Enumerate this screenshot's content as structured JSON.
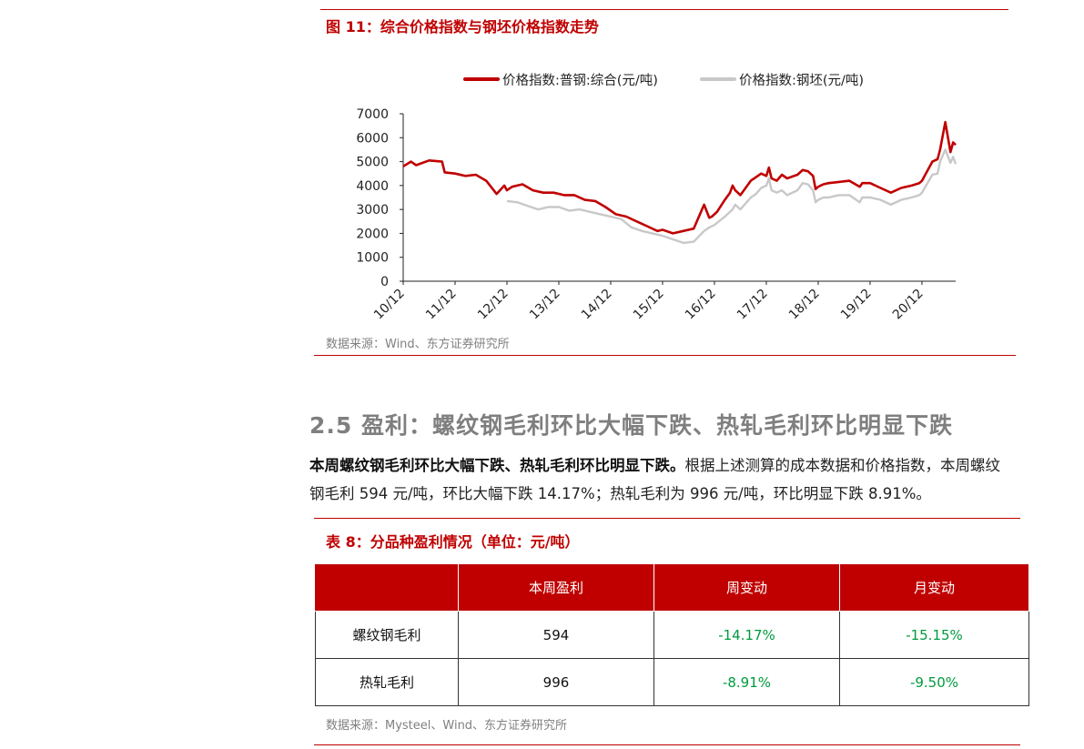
{
  "figure": {
    "title": "图 11：综合价格指数与钢坯价格指数走势",
    "source": "数据来源：Wind、东方证券研究所",
    "legend": [
      {
        "label": "价格指数:普钢:综合(元/吨)",
        "color": "#c00000"
      },
      {
        "label": "价格指数:钢坯(元/吨)",
        "color": "#c8c8c8"
      }
    ]
  },
  "chart_data": {
    "type": "line",
    "ylim": [
      0,
      7000
    ],
    "yticks": [
      "0",
      "1000",
      "2000",
      "3000",
      "4000",
      "5000",
      "6000",
      "7000"
    ],
    "xticks": [
      "10/12",
      "11/12",
      "12/12",
      "13/12",
      "14/12",
      "15/12",
      "16/12",
      "17/12",
      "18/12",
      "19/12",
      "20/12"
    ],
    "xlim": [
      2010.0,
      2020.65
    ],
    "series": [
      {
        "name": "价格指数:普钢:综合(元/吨)",
        "color": "#c00000",
        "x": [
          2010.0,
          2010.15,
          2010.25,
          2010.5,
          2010.75,
          2010.8,
          2011.0,
          2011.2,
          2011.4,
          2011.6,
          2011.8,
          2011.95,
          2012.0,
          2012.1,
          2012.3,
          2012.5,
          2012.7,
          2012.9,
          2013.1,
          2013.3,
          2013.5,
          2013.7,
          2013.9,
          2014.1,
          2014.3,
          2014.5,
          2014.7,
          2014.9,
          2015.0,
          2015.2,
          2015.4,
          2015.6,
          2015.8,
          2015.9,
          2015.95,
          2016.05,
          2016.2,
          2016.3,
          2016.35,
          2016.4,
          2016.5,
          2016.7,
          2016.8,
          2016.9,
          2017.0,
          2017.05,
          2017.1,
          2017.2,
          2017.3,
          2017.4,
          2017.6,
          2017.7,
          2017.8,
          2017.9,
          2017.95,
          2018.0,
          2018.1,
          2018.2,
          2018.4,
          2018.6,
          2018.8,
          2018.85,
          2019.0,
          2019.2,
          2019.4,
          2019.6,
          2019.8,
          2019.95,
          2020.0,
          2020.2,
          2020.3,
          2020.35,
          2020.45,
          2020.55,
          2020.6,
          2020.65
        ],
        "y": [
          4800,
          5000,
          4850,
          5050,
          5000,
          4550,
          4500,
          4400,
          4450,
          4200,
          3650,
          4000,
          3800,
          3950,
          4050,
          3800,
          3700,
          3700,
          3600,
          3600,
          3400,
          3350,
          3100,
          2800,
          2700,
          2500,
          2300,
          2100,
          2150,
          2000,
          2100,
          2200,
          3200,
          2650,
          2700,
          2900,
          3400,
          3700,
          4000,
          3800,
          3600,
          4200,
          4350,
          4500,
          4400,
          4750,
          4300,
          4200,
          4450,
          4300,
          4450,
          4650,
          4600,
          4400,
          3850,
          3950,
          4050,
          4100,
          4150,
          4200,
          3950,
          4100,
          4100,
          3900,
          3700,
          3900,
          4000,
          4100,
          4200,
          5000,
          5100,
          5500,
          6650,
          5400,
          5800,
          5700
        ]
      },
      {
        "name": "价格指数:钢坯(元/吨)",
        "color": "#c8c8c8",
        "x": [
          2012.0,
          2012.2,
          2012.4,
          2012.6,
          2012.8,
          2013.0,
          2013.2,
          2013.4,
          2013.6,
          2013.8,
          2014.0,
          2014.2,
          2014.4,
          2014.6,
          2014.8,
          2015.0,
          2015.2,
          2015.4,
          2015.6,
          2015.8,
          2015.9,
          2016.0,
          2016.2,
          2016.35,
          2016.4,
          2016.5,
          2016.7,
          2016.8,
          2016.9,
          2017.0,
          2017.05,
          2017.1,
          2017.2,
          2017.3,
          2017.4,
          2017.6,
          2017.7,
          2017.8,
          2017.9,
          2017.95,
          2018.0,
          2018.1,
          2018.2,
          2018.4,
          2018.6,
          2018.8,
          2018.85,
          2019.0,
          2019.2,
          2019.4,
          2019.6,
          2019.8,
          2019.95,
          2020.0,
          2020.2,
          2020.3,
          2020.35,
          2020.45,
          2020.55,
          2020.6,
          2020.65
        ],
        "y": [
          3350,
          3300,
          3150,
          3000,
          3100,
          3100,
          2950,
          3000,
          2900,
          2800,
          2700,
          2600,
          2250,
          2100,
          2000,
          1900,
          1750,
          1600,
          1650,
          2100,
          2250,
          2350,
          2700,
          3000,
          3200,
          3000,
          3500,
          3650,
          3900,
          4000,
          4300,
          3800,
          3700,
          3800,
          3600,
          3800,
          4100,
          4050,
          3800,
          3300,
          3400,
          3500,
          3500,
          3600,
          3600,
          3300,
          3500,
          3500,
          3400,
          3200,
          3400,
          3500,
          3600,
          3700,
          4450,
          4500,
          5000,
          5500,
          4950,
          5200,
          4900
        ]
      }
    ]
  },
  "section": {
    "title": "2.5 盈利：螺纹钢毛利环比大幅下跌、热轧毛利环比明显下跌",
    "lead_bold": "本周螺纹钢毛利环比大幅下跌、热轧毛利环比明显下跌。",
    "body": "根据上述测算的成本数据和价格指数，本周螺纹钢毛利 594 元/吨，环比大幅下跌 14.17%；热轧毛利为 996 元/吨，环比明显下跌 8.91%。"
  },
  "table": {
    "title": "表 8：分品种盈利情况（单位：元/吨）",
    "headers": [
      "",
      "本周盈利",
      "周变动",
      "月变动"
    ],
    "rows": [
      [
        "螺纹钢毛利",
        "594",
        "-14.17%",
        "-15.15%"
      ],
      [
        "热轧毛利",
        "996",
        "-8.91%",
        "-9.50%"
      ]
    ],
    "source": "数据来源：Mysteel、Wind、东方证券研究所"
  }
}
